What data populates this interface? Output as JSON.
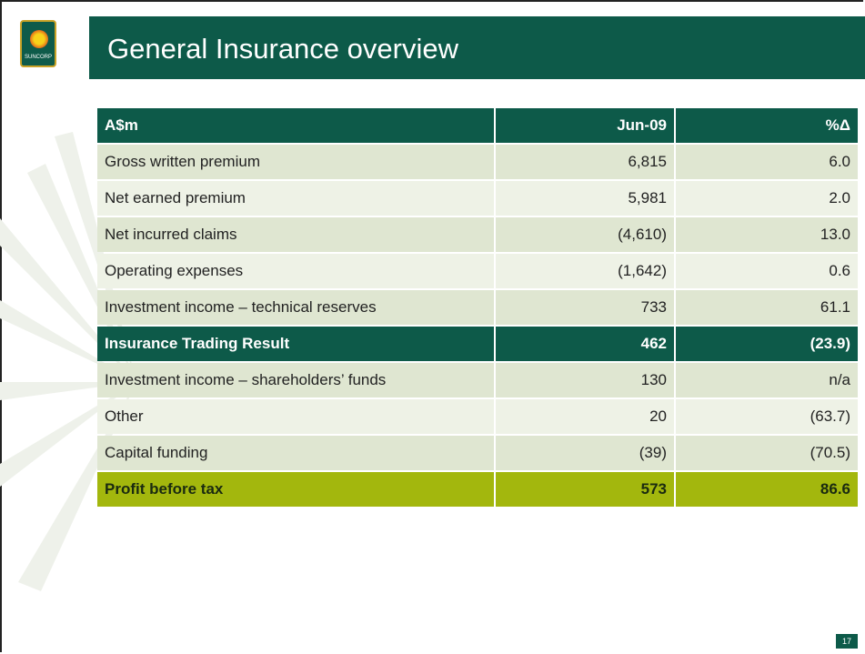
{
  "header": {
    "logo": "SUNCORP",
    "title": "General Insurance overview"
  },
  "table": {
    "columns": [
      "A$m",
      "Jun-09",
      "%Δ"
    ],
    "rows": [
      [
        "Gross written premium",
        "6,815",
        "6.0"
      ],
      [
        "Net earned premium",
        "5,981",
        "2.0"
      ],
      [
        "Net incurred claims",
        "(4,610)",
        "13.0"
      ],
      [
        "Operating expenses",
        "(1,642)",
        "0.6"
      ],
      [
        "Investment income – technical reserves",
        "733",
        "61.1"
      ],
      [
        "Insurance Trading Result",
        "462",
        "(23.9)"
      ],
      [
        "Investment income – shareholders’ funds",
        "130",
        "n/a"
      ],
      [
        "Other",
        "20",
        "(63.7)"
      ],
      [
        "Capital funding",
        "(39)",
        "(70.5)"
      ],
      [
        "Profit before tax",
        "573",
        "86.6"
      ]
    ]
  },
  "footer": {
    "page_number": "17"
  }
}
